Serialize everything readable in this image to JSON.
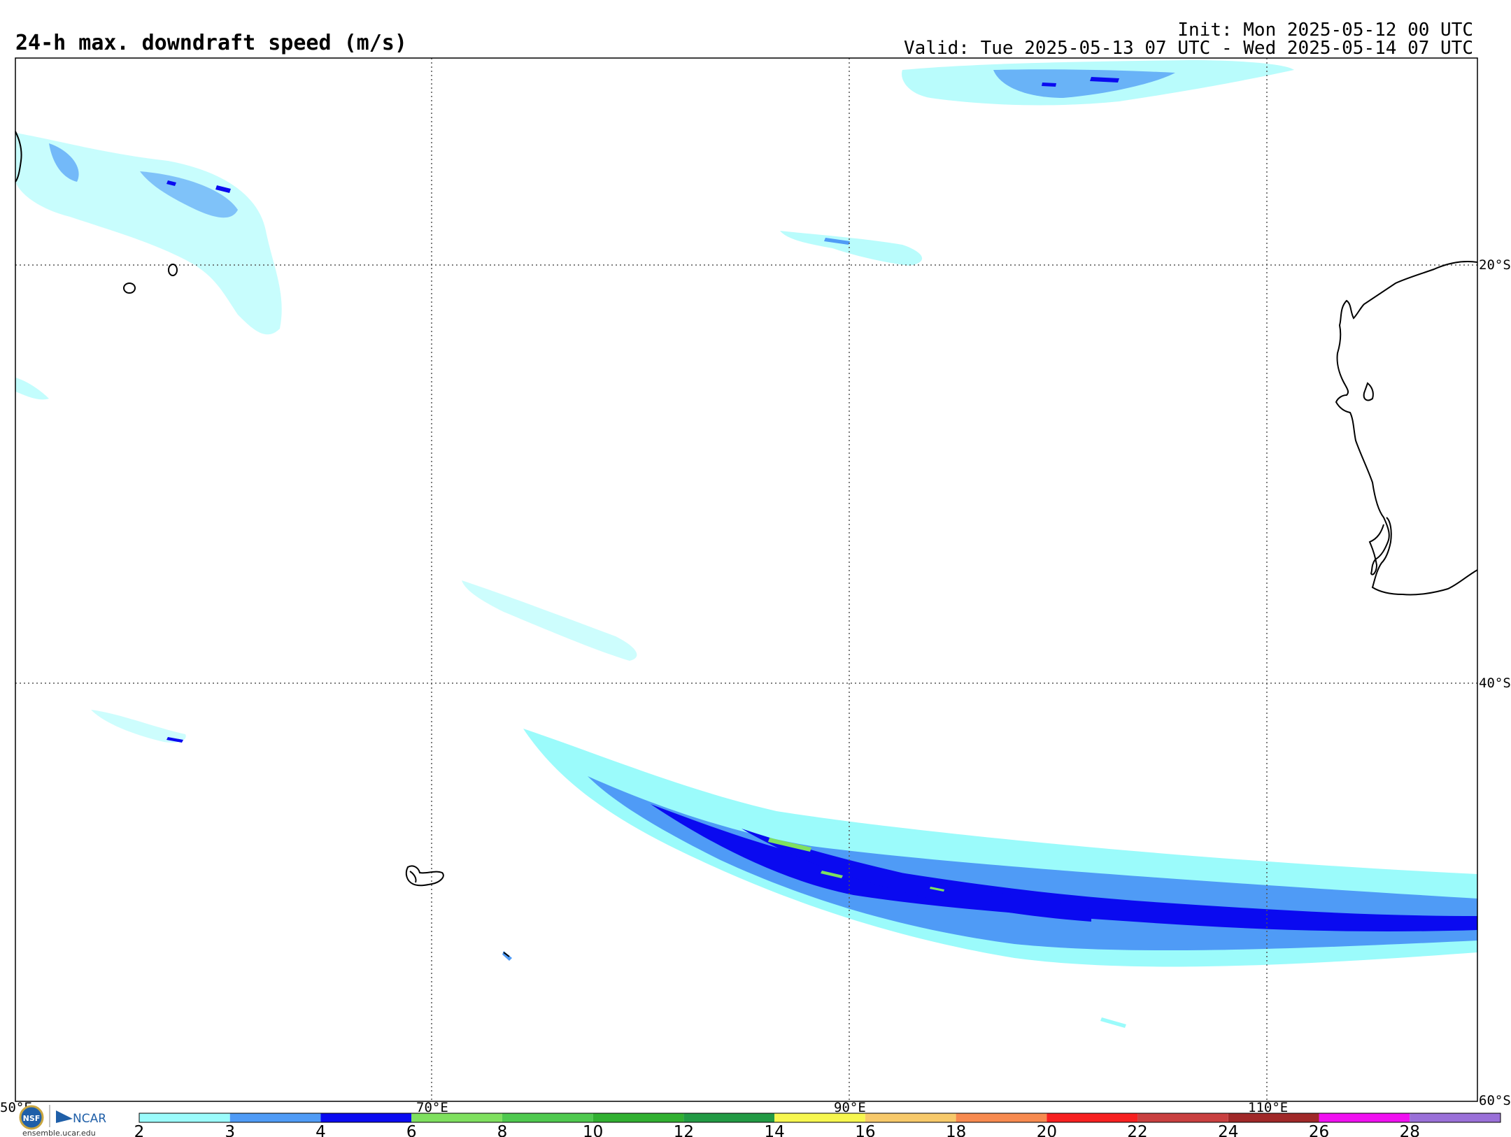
{
  "header": {
    "title": "24-h max. downdraft speed (m/s)",
    "init": "Init: Mon 2025-05-12 00 UTC",
    "valid": "Valid: Tue 2025-05-13 07 UTC - Wed 2025-05-14 07 UTC"
  },
  "map": {
    "lon_labels": [
      "50°E",
      "70°E",
      "90°E",
      "110°E"
    ],
    "lat_labels": [
      "20°S",
      "40°S",
      "60°S"
    ]
  },
  "colorbar": {
    "colors": [
      "#9bfbfb",
      "#4f9bf6",
      "#0a0af0",
      "#7fe05f",
      "#4fc94f",
      "#31b031",
      "#229a44",
      "#f7f74f",
      "#f7c96a",
      "#f78a4f",
      "#f72020",
      "#c94040",
      "#a02828",
      "#f010f0",
      "#9a70d8"
    ],
    "tick_labels": [
      "2",
      "3",
      "4",
      "6",
      "8",
      "10",
      "12",
      "14",
      "16",
      "18",
      "20",
      "22",
      "24",
      "26",
      "28"
    ]
  },
  "logo": {
    "nsf": "NSF",
    "ncar": "NCAR",
    "url": "ensemble.ucar.edu"
  }
}
